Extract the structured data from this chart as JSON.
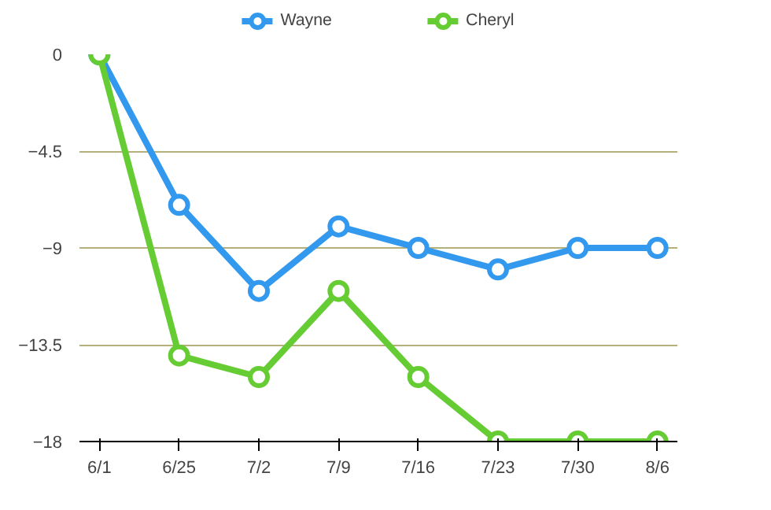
{
  "chart_data": {
    "type": "line",
    "categories": [
      "6/1",
      "6/25",
      "7/2",
      "7/9",
      "7/16",
      "7/23",
      "7/30",
      "8/6"
    ],
    "series": [
      {
        "name": "Wayne",
        "color": "#3399ee",
        "values": [
          0,
          -7,
          -11,
          -8,
          -9,
          -10,
          -9,
          -9
        ]
      },
      {
        "name": "Cheryl",
        "color": "#66cc33",
        "values": [
          0,
          -14,
          -15,
          -11,
          -15,
          -18,
          -18,
          -18
        ]
      }
    ],
    "ylim": [
      -18,
      0
    ],
    "yticks": [
      0,
      -4.5,
      -9,
      -13.5,
      -18
    ],
    "grid": "y",
    "legend": "top",
    "marker": "circle",
    "line_style": "solid"
  }
}
